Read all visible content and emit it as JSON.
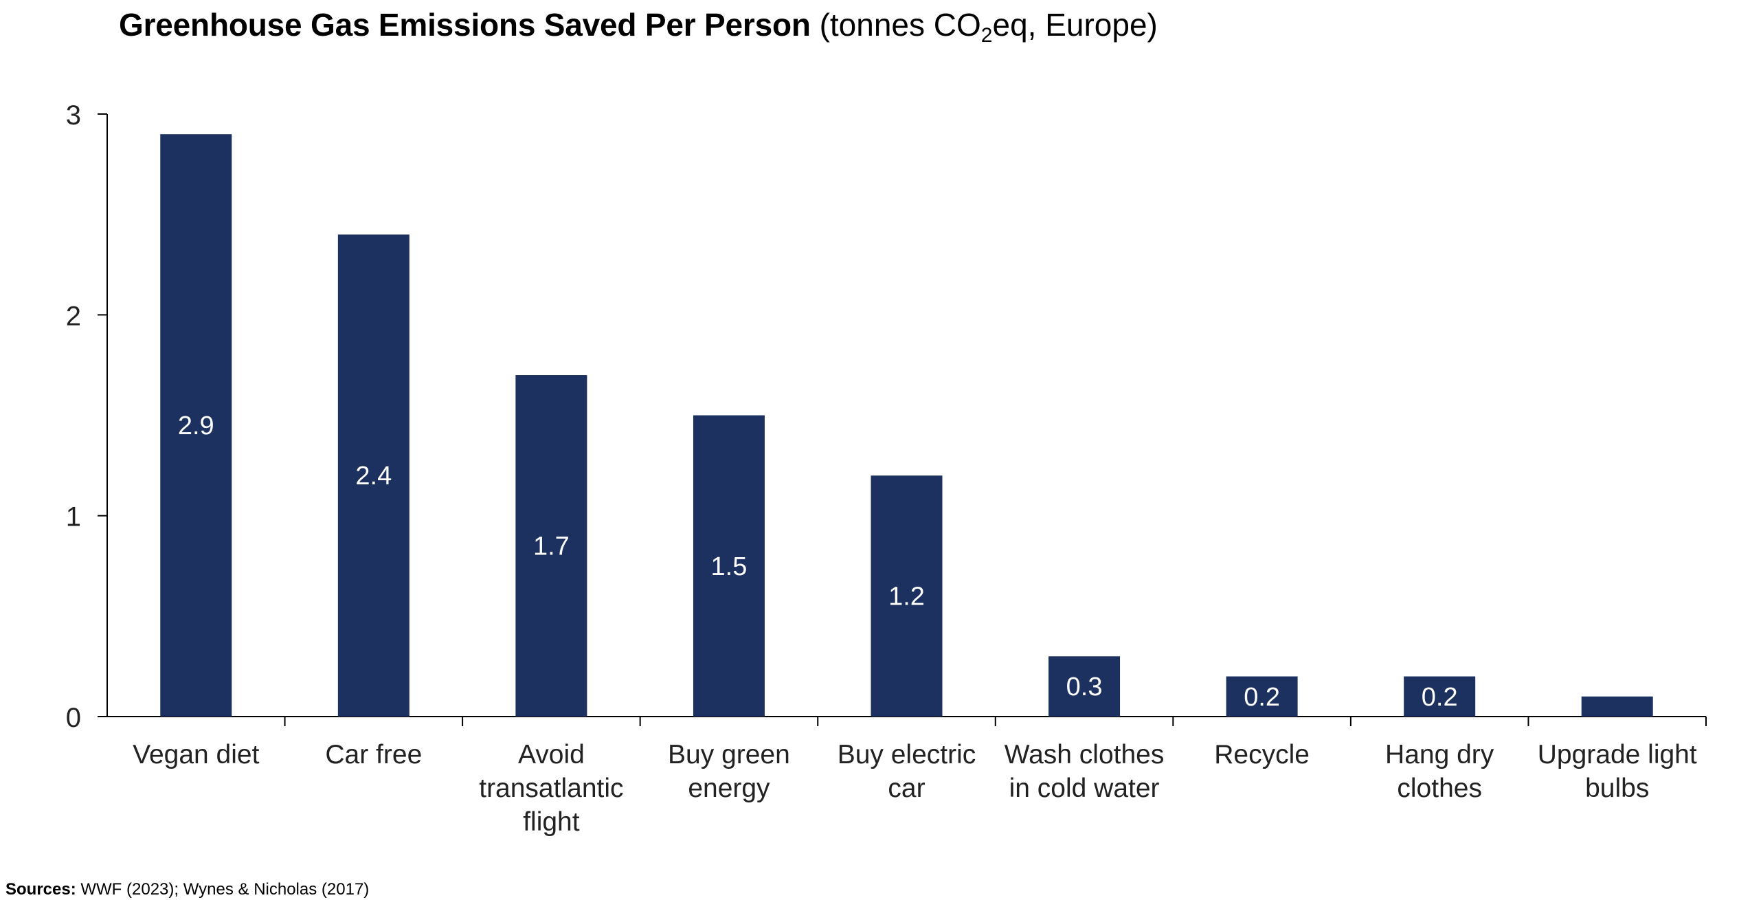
{
  "title": {
    "main": "Greenhouse Gas Emissions Saved Per Person",
    "unit_prefix": "(tonnes CO",
    "unit_subscript": "2",
    "unit_suffix": "eq, Europe)"
  },
  "source": {
    "label": "Sources:",
    "text": "WWF (2023); Wynes & Nicholas (2017)"
  },
  "chart_data": {
    "type": "bar",
    "categories": [
      [
        "Vegan diet"
      ],
      [
        "Car free"
      ],
      [
        "Avoid",
        "transatlantic",
        "flight"
      ],
      [
        "Buy green",
        "energy"
      ],
      [
        "Buy electric",
        "car"
      ],
      [
        "Wash clothes",
        "in cold water"
      ],
      [
        "Recycle"
      ],
      [
        "Hang dry",
        "clothes"
      ],
      [
        "Upgrade light",
        "bulbs"
      ]
    ],
    "values": [
      2.9,
      2.4,
      1.7,
      1.5,
      1.2,
      0.3,
      0.2,
      0.2,
      0.1
    ],
    "data_labels": [
      "2.9",
      "2.4",
      "1.7",
      "1.5",
      "1.2",
      "0.3",
      "0.2",
      "0.2",
      ""
    ],
    "yticks": [
      0,
      1,
      2,
      3
    ],
    "ylim": [
      0,
      3
    ],
    "grid": false,
    "legend": "none",
    "colors": {
      "bar": "#1d3160",
      "label": "#ffffff",
      "axis": "#000000"
    }
  }
}
